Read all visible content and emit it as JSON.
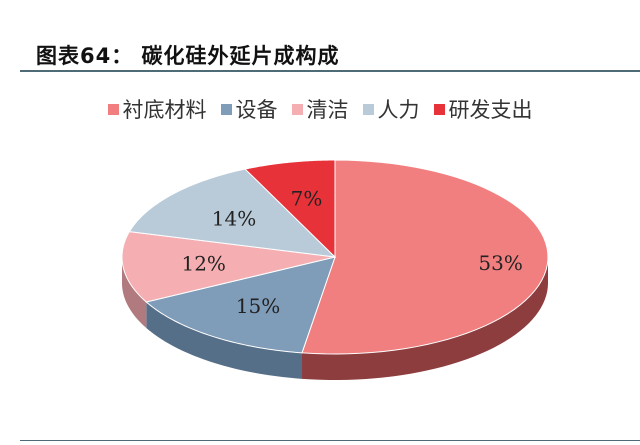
{
  "chart_data": {
    "type": "pie",
    "title": "图表64： 碳化硅外延片成构成",
    "legend_position": "top",
    "slices": [
      {
        "label": "衬底材料",
        "value": 53,
        "display": "53%",
        "color": "#f27f80",
        "side": "#8e3d3f"
      },
      {
        "label": "设备",
        "value": 15,
        "display": "15%",
        "color": "#7f9cb8",
        "side": "#566f88"
      },
      {
        "label": "清洁",
        "value": 12,
        "display": "12%",
        "color": "#f5aeb2",
        "side": "#b07a7e"
      },
      {
        "label": "人力",
        "value": 14,
        "display": "14%",
        "color": "#b9cbd9",
        "side": "#8797a3"
      },
      {
        "label": "研发支出",
        "value": 7,
        "display": "7%",
        "color": "#e8323a",
        "side": "#9a1f24"
      }
    ]
  }
}
